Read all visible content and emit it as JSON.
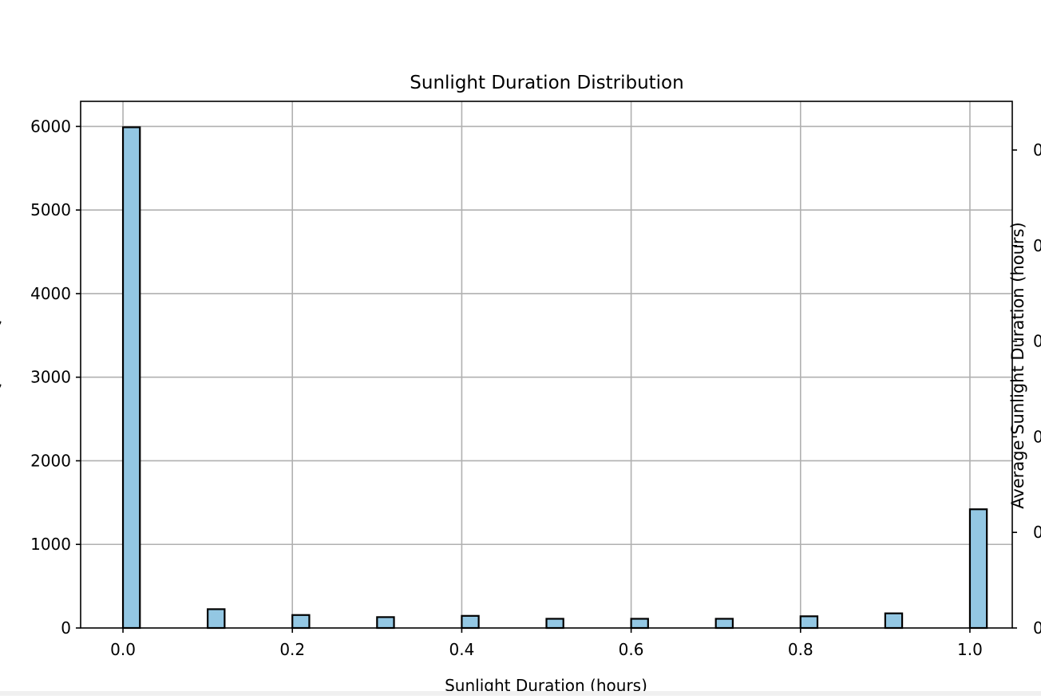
{
  "chart_data": {
    "type": "bar",
    "title": "Sunlight Duration Distribution",
    "xlabel": "Sunlight Duration (hours)",
    "ylabel": "",
    "ylabel_right": "Average Sunlight Duration (hours)",
    "xlim": [
      -0.05,
      1.05
    ],
    "ylim": [
      0,
      6300
    ],
    "x_ticks": [
      "0.0",
      "0.2",
      "0.4",
      "0.6",
      "0.8",
      "1.0"
    ],
    "y_ticks": [
      "0",
      "1000",
      "2000",
      "3000",
      "4000",
      "5000",
      "6000"
    ],
    "right_ticks": [
      "0",
      "0",
      "0",
      "0",
      "0",
      "0"
    ],
    "bin_width": 0.02,
    "bars": [
      {
        "x": 0.0,
        "count": 5990
      },
      {
        "x": 0.1,
        "count": 225
      },
      {
        "x": 0.2,
        "count": 155
      },
      {
        "x": 0.3,
        "count": 130
      },
      {
        "x": 0.4,
        "count": 145
      },
      {
        "x": 0.5,
        "count": 110
      },
      {
        "x": 0.6,
        "count": 110
      },
      {
        "x": 0.7,
        "count": 110
      },
      {
        "x": 0.8,
        "count": 140
      },
      {
        "x": 0.9,
        "count": 175
      },
      {
        "x": 1.0,
        "count": 1420
      }
    ],
    "grid": true,
    "colors": {
      "bar_fill": "#93c7e3",
      "bar_edge": "#000000",
      "grid": "#b0b0b0"
    }
  }
}
